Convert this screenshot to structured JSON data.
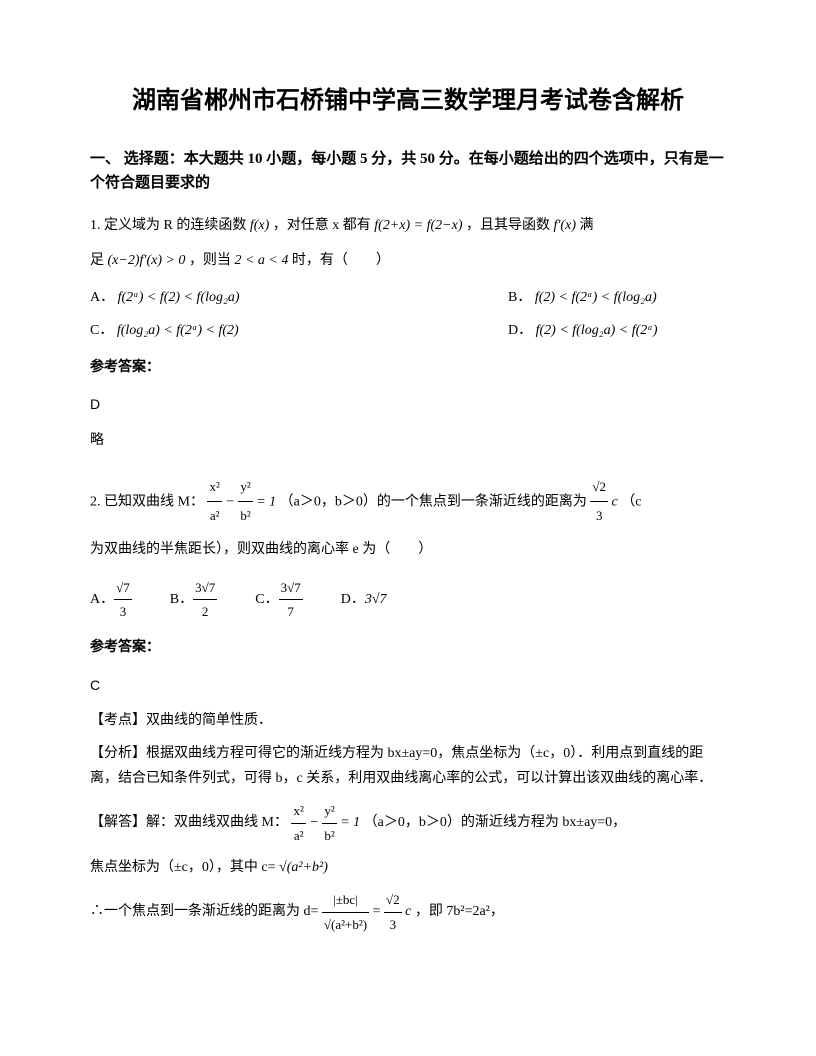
{
  "title": "湖南省郴州市石桥铺中学高三数学理月考试卷含解析",
  "section_heading": "一、 选择题：本大题共 10 小题，每小题 5 分，共 50 分。在每小题给出的四个选项中，只有是一个符合题目要求的",
  "q1": {
    "stem_part1": "1. 定义域为 R 的连续函数",
    "formula1": "f(x)",
    "stem_part2": "，对任意 x 都有",
    "formula2": "f(2+x) = f(2−x)",
    "stem_part3": "，且其导函数",
    "formula3": "f′(x)",
    "stem_part4": "满",
    "stem_line2_part1": "足",
    "formula4": "(x−2)f′(x) > 0",
    "stem_line2_part2": "，则当",
    "formula5": "2 < a < 4",
    "stem_line2_part3": "时，有（　　）",
    "optA_label": "A．",
    "optA_formula": "f(2ᵃ) < f(2) < f(log₂a)",
    "optB_label": "B．",
    "optB_formula": "f(2) < f(2ᵃ) < f(log₂a)",
    "optC_label": "C．",
    "optC_formula": "f(log₂a) < f(2ᵃ) < f(2)",
    "optD_label": "D．",
    "optD_formula": "f(2) < f(log₂a) < f(2ᵃ)",
    "answer_label": "参考答案：",
    "answer": "D",
    "brief": "略"
  },
  "q2": {
    "stem_part1": "2. 已知双曲线 M：",
    "formula_eq": "x²/a² − y²/b² = 1",
    "stem_part2": "（a＞0，b＞0）的一个焦点到一条渐近线的距离为",
    "formula_dist": "√2/3 c",
    "stem_part3": "（c",
    "stem_line2": "为双曲线的半焦距长），则双曲线的离心率 e 为（　　）",
    "optA_label": "A．",
    "optA_num": "√7",
    "optA_den": "3",
    "optB_label": "B．",
    "optB_num": "3√7",
    "optB_den": "2",
    "optC_label": "C．",
    "optC_num": "3√7",
    "optC_den": "7",
    "optD_label": "D．",
    "optD_val": "3√7",
    "answer_label": "参考答案：",
    "answer": "C",
    "kaodian_label": "【考点】",
    "kaodian": "双曲线的简单性质．",
    "fenxi_label": "【分析】",
    "fenxi": "根据双曲线方程可得它的渐近线方程为 bx±ay=0，焦点坐标为（±c，0）．利用点到直线的距离，结合已知条件列式，可得 b，c 关系，利用双曲线离心率的公式，可以计算出该双曲线的离心率．",
    "jieda_label": "【解答】",
    "jieda_part1": "解：双曲线双曲线 M：",
    "jieda_part2": "（a＞0，b＞0）的渐近线方程为 bx±ay=0，",
    "jieda_line2_part1": "焦点坐标为（±c，0），其中 c=",
    "jieda_c_formula": "√(a²+b²)",
    "jieda_line3_part1": "∴一个焦点到一条渐近线的距离为 d=",
    "jieda_d_num": "|±bc|",
    "jieda_d_den": "√(a²+b²)",
    "jieda_line3_eq": "=",
    "jieda_line3_rhs_num": "√2",
    "jieda_line3_rhs_den": "3",
    "jieda_line3_c": "c",
    "jieda_line3_end": "，即 7b²=2a²，"
  }
}
